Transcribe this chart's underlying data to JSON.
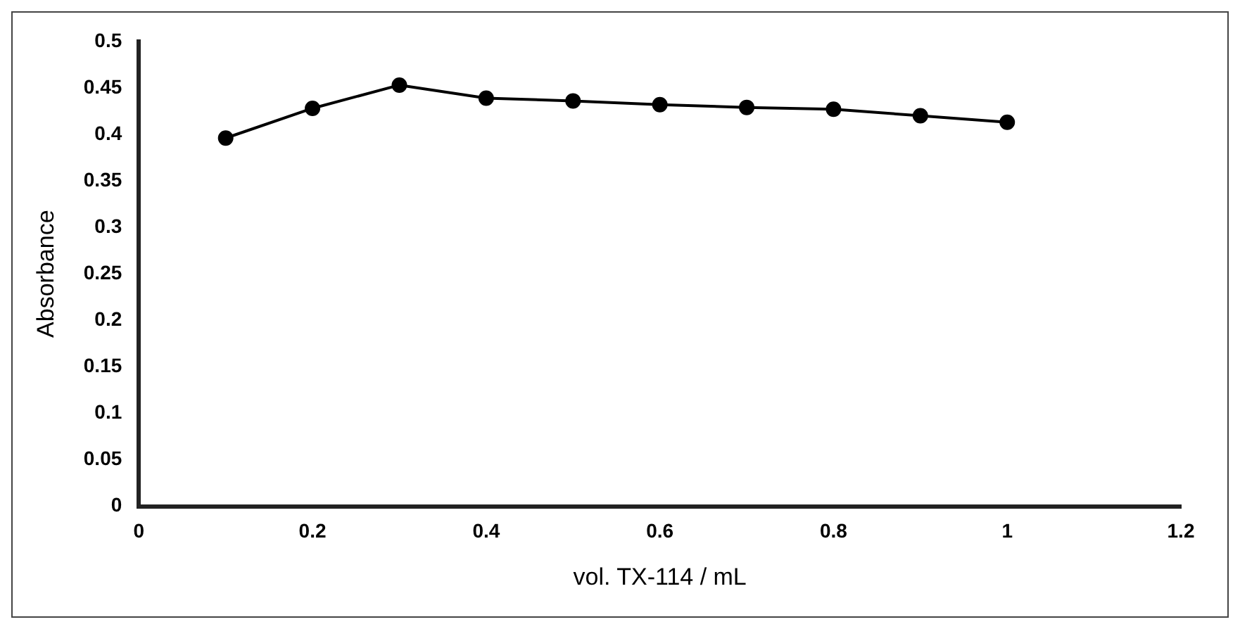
{
  "chart_data": {
    "type": "line",
    "xlabel": "vol. TX-114 / mL",
    "ylabel": "Absorbance",
    "x": [
      0.1,
      0.2,
      0.3,
      0.4,
      0.5,
      0.6,
      0.7,
      0.8,
      0.9,
      1.0
    ],
    "series": [
      {
        "color": "#000000",
        "values": [
          0.396,
          0.428,
          0.453,
          0.439,
          0.436,
          0.432,
          0.429,
          0.427,
          0.42,
          0.413
        ]
      }
    ],
    "xlim": [
      0,
      1.2
    ],
    "xticks": [
      0,
      0.2,
      0.4,
      0.6,
      0.8,
      1,
      1.2
    ],
    "ylim": [
      0,
      0.5
    ],
    "yticks": [
      0,
      0.05,
      0.1,
      0.15,
      0.2,
      0.25,
      0.3,
      0.35,
      0.4,
      0.45,
      0.5
    ],
    "grid": false,
    "legend": false,
    "marker": "circle",
    "line_style": "solid"
  }
}
